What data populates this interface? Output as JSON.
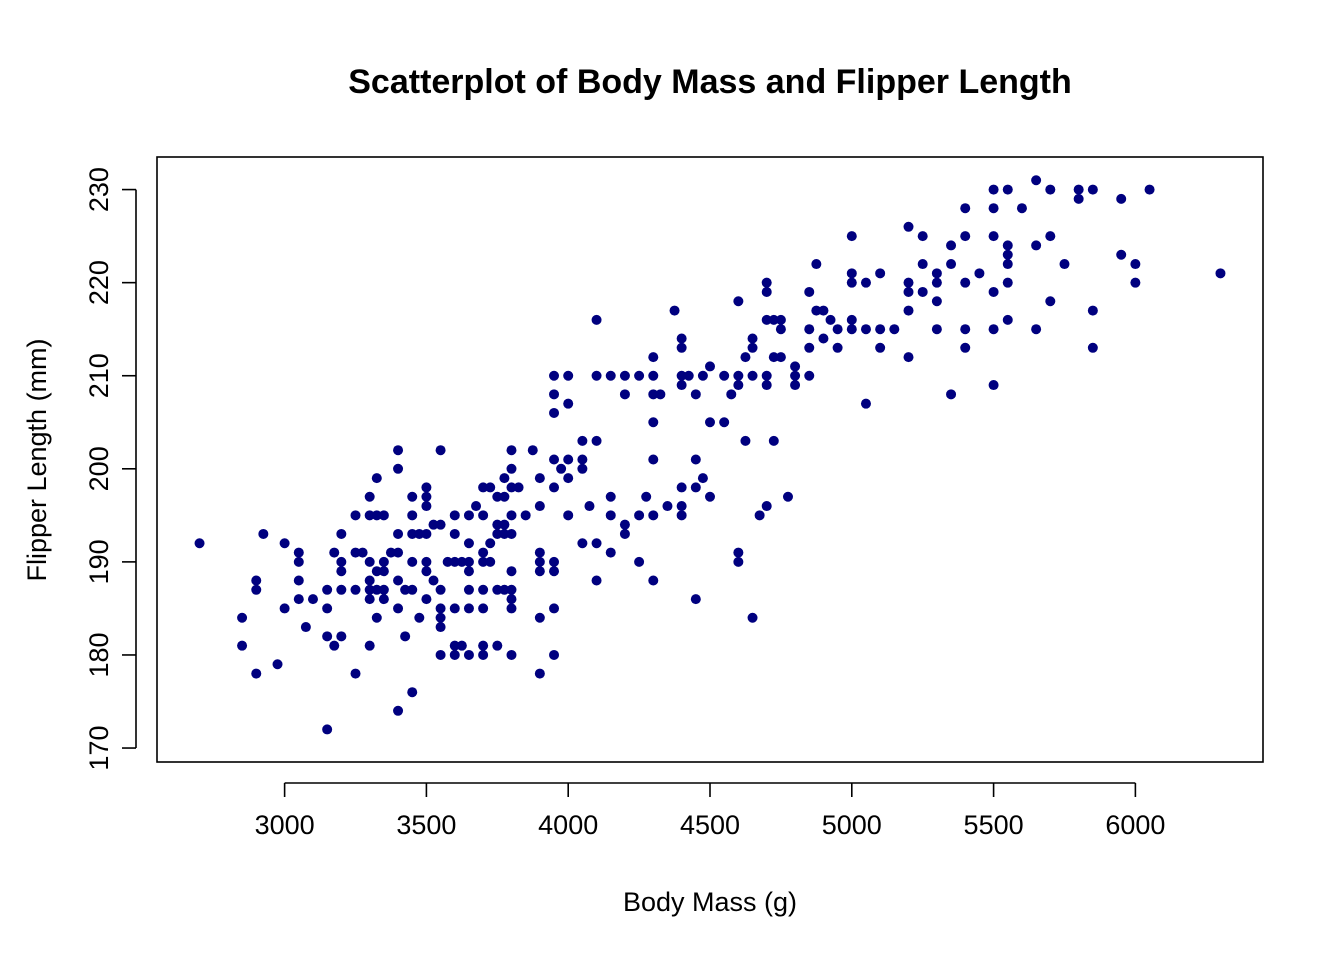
{
  "chart_data": {
    "type": "scatter",
    "title": "Scatterplot of Body Mass and Flipper Length",
    "xlabel": "Body Mass (g)",
    "ylabel": "Flipper Length (mm)",
    "xlim": [
      2550,
      6450
    ],
    "ylim": [
      168.5,
      233.5
    ],
    "x_ticks": [
      3000,
      3500,
      4000,
      4500,
      5000,
      5500,
      6000
    ],
    "y_ticks": [
      170,
      180,
      190,
      200,
      210,
      220,
      230
    ],
    "point_color": "#00007f",
    "grid": false,
    "legend": "none",
    "points": [
      [
        2700,
        192
      ],
      [
        2850,
        184
      ],
      [
        2850,
        181
      ],
      [
        2900,
        188
      ],
      [
        2900,
        187
      ],
      [
        2900,
        178
      ],
      [
        2925,
        193
      ],
      [
        2975,
        179
      ],
      [
        3000,
        192
      ],
      [
        3000,
        185
      ],
      [
        3050,
        191
      ],
      [
        3050,
        190
      ],
      [
        3050,
        188
      ],
      [
        3050,
        186
      ],
      [
        3075,
        183
      ],
      [
        3100,
        186
      ],
      [
        3150,
        187
      ],
      [
        3150,
        185
      ],
      [
        3150,
        182
      ],
      [
        3150,
        172
      ],
      [
        3175,
        191
      ],
      [
        3175,
        181
      ],
      [
        3200,
        193
      ],
      [
        3200,
        190
      ],
      [
        3200,
        189
      ],
      [
        3200,
        187
      ],
      [
        3200,
        182
      ],
      [
        3250,
        195
      ],
      [
        3250,
        191
      ],
      [
        3250,
        187
      ],
      [
        3250,
        178
      ],
      [
        3275,
        191
      ],
      [
        3300,
        197
      ],
      [
        3300,
        195
      ],
      [
        3300,
        190
      ],
      [
        3300,
        188
      ],
      [
        3300,
        187
      ],
      [
        3300,
        186
      ],
      [
        3300,
        181
      ],
      [
        3325,
        199
      ],
      [
        3325,
        195
      ],
      [
        3325,
        189
      ],
      [
        3325,
        187
      ],
      [
        3325,
        184
      ],
      [
        3350,
        195
      ],
      [
        3350,
        190
      ],
      [
        3350,
        189
      ],
      [
        3350,
        187
      ],
      [
        3350,
        186
      ],
      [
        3375,
        191
      ],
      [
        3400,
        202
      ],
      [
        3400,
        200
      ],
      [
        3400,
        193
      ],
      [
        3400,
        191
      ],
      [
        3400,
        188
      ],
      [
        3400,
        185
      ],
      [
        3400,
        174
      ],
      [
        3425,
        187
      ],
      [
        3425,
        182
      ],
      [
        3450,
        197
      ],
      [
        3450,
        195
      ],
      [
        3450,
        193
      ],
      [
        3450,
        190
      ],
      [
        3450,
        187
      ],
      [
        3450,
        176
      ],
      [
        3475,
        193
      ],
      [
        3475,
        184
      ],
      [
        3500,
        198
      ],
      [
        3500,
        197
      ],
      [
        3500,
        196
      ],
      [
        3500,
        193
      ],
      [
        3500,
        190
      ],
      [
        3500,
        189
      ],
      [
        3500,
        186
      ],
      [
        3525,
        188
      ],
      [
        3525,
        194
      ],
      [
        3550,
        202
      ],
      [
        3550,
        194
      ],
      [
        3550,
        187
      ],
      [
        3550,
        185
      ],
      [
        3550,
        184
      ],
      [
        3550,
        183
      ],
      [
        3550,
        180
      ],
      [
        3575,
        190
      ],
      [
        3600,
        195
      ],
      [
        3600,
        193
      ],
      [
        3600,
        190
      ],
      [
        3600,
        185
      ],
      [
        3600,
        181
      ],
      [
        3600,
        180
      ],
      [
        3625,
        190
      ],
      [
        3625,
        181
      ],
      [
        3650,
        195
      ],
      [
        3650,
        192
      ],
      [
        3650,
        190
      ],
      [
        3650,
        189
      ],
      [
        3650,
        187
      ],
      [
        3650,
        185
      ],
      [
        3650,
        180
      ],
      [
        3675,
        196
      ],
      [
        3700,
        198
      ],
      [
        3700,
        195
      ],
      [
        3700,
        191
      ],
      [
        3700,
        190
      ],
      [
        3700,
        187
      ],
      [
        3700,
        185
      ],
      [
        3700,
        181
      ],
      [
        3700,
        180
      ],
      [
        3725,
        198
      ],
      [
        3725,
        192
      ],
      [
        3725,
        190
      ],
      [
        3750,
        197
      ],
      [
        3750,
        194
      ],
      [
        3750,
        193
      ],
      [
        3750,
        187
      ],
      [
        3750,
        181
      ],
      [
        3775,
        199
      ],
      [
        3775,
        197
      ],
      [
        3775,
        194
      ],
      [
        3775,
        193
      ],
      [
        3775,
        187
      ],
      [
        3800,
        202
      ],
      [
        3800,
        200
      ],
      [
        3800,
        198
      ],
      [
        3800,
        195
      ],
      [
        3800,
        193
      ],
      [
        3800,
        189
      ],
      [
        3800,
        187
      ],
      [
        3800,
        186
      ],
      [
        3800,
        185
      ],
      [
        3800,
        180
      ],
      [
        3825,
        198
      ],
      [
        3850,
        195
      ],
      [
        3875,
        202
      ],
      [
        3900,
        199
      ],
      [
        3900,
        196
      ],
      [
        3900,
        191
      ],
      [
        3900,
        190
      ],
      [
        3900,
        189
      ],
      [
        3900,
        184
      ],
      [
        3900,
        178
      ],
      [
        3950,
        210
      ],
      [
        3950,
        208
      ],
      [
        3950,
        206
      ],
      [
        3950,
        201
      ],
      [
        3950,
        198
      ],
      [
        3950,
        190
      ],
      [
        3950,
        189
      ],
      [
        3950,
        185
      ],
      [
        3950,
        180
      ],
      [
        3975,
        200
      ],
      [
        4000,
        210
      ],
      [
        4000,
        207
      ],
      [
        4000,
        201
      ],
      [
        4000,
        199
      ],
      [
        4000,
        195
      ],
      [
        4050,
        203
      ],
      [
        4050,
        201
      ],
      [
        4050,
        200
      ],
      [
        4050,
        192
      ],
      [
        4075,
        196
      ],
      [
        4100,
        216
      ],
      [
        4100,
        210
      ],
      [
        4100,
        203
      ],
      [
        4100,
        192
      ],
      [
        4100,
        188
      ],
      [
        4150,
        210
      ],
      [
        4150,
        197
      ],
      [
        4150,
        195
      ],
      [
        4150,
        191
      ],
      [
        4200,
        210
      ],
      [
        4200,
        208
      ],
      [
        4200,
        194
      ],
      [
        4200,
        193
      ],
      [
        4250,
        210
      ],
      [
        4250,
        195
      ],
      [
        4250,
        190
      ],
      [
        4275,
        197
      ],
      [
        4300,
        212
      ],
      [
        4300,
        210
      ],
      [
        4300,
        208
      ],
      [
        4300,
        205
      ],
      [
        4300,
        201
      ],
      [
        4300,
        195
      ],
      [
        4300,
        188
      ],
      [
        4325,
        208
      ],
      [
        4350,
        196
      ],
      [
        4375,
        217
      ],
      [
        4400,
        214
      ],
      [
        4400,
        213
      ],
      [
        4400,
        210
      ],
      [
        4400,
        209
      ],
      [
        4400,
        198
      ],
      [
        4400,
        196
      ],
      [
        4400,
        195
      ],
      [
        4425,
        210
      ],
      [
        4450,
        208
      ],
      [
        4450,
        201
      ],
      [
        4450,
        198
      ],
      [
        4450,
        186
      ],
      [
        4475,
        210
      ],
      [
        4475,
        199
      ],
      [
        4500,
        211
      ],
      [
        4500,
        205
      ],
      [
        4500,
        197
      ],
      [
        4550,
        210
      ],
      [
        4550,
        205
      ],
      [
        4575,
        208
      ],
      [
        4600,
        218
      ],
      [
        4600,
        210
      ],
      [
        4600,
        209
      ],
      [
        4600,
        191
      ],
      [
        4600,
        190
      ],
      [
        4625,
        212
      ],
      [
        4625,
        203
      ],
      [
        4650,
        214
      ],
      [
        4650,
        213
      ],
      [
        4650,
        210
      ],
      [
        4650,
        184
      ],
      [
        4675,
        195
      ],
      [
        4700,
        220
      ],
      [
        4700,
        219
      ],
      [
        4700,
        216
      ],
      [
        4700,
        210
      ],
      [
        4700,
        209
      ],
      [
        4700,
        196
      ],
      [
        4725,
        216
      ],
      [
        4725,
        212
      ],
      [
        4725,
        203
      ],
      [
        4750,
        216
      ],
      [
        4750,
        215
      ],
      [
        4750,
        212
      ],
      [
        4775,
        197
      ],
      [
        4800,
        211
      ],
      [
        4800,
        210
      ],
      [
        4800,
        209
      ],
      [
        4850,
        219
      ],
      [
        4850,
        215
      ],
      [
        4850,
        213
      ],
      [
        4850,
        210
      ],
      [
        4875,
        222
      ],
      [
        4875,
        217
      ],
      [
        4900,
        217
      ],
      [
        4900,
        214
      ],
      [
        4925,
        216
      ],
      [
        4950,
        215
      ],
      [
        4950,
        213
      ],
      [
        5000,
        225
      ],
      [
        5000,
        221
      ],
      [
        5000,
        220
      ],
      [
        5000,
        216
      ],
      [
        5000,
        215
      ],
      [
        5050,
        220
      ],
      [
        5050,
        215
      ],
      [
        5050,
        207
      ],
      [
        5100,
        221
      ],
      [
        5100,
        215
      ],
      [
        5100,
        213
      ],
      [
        5150,
        215
      ],
      [
        5200,
        226
      ],
      [
        5200,
        220
      ],
      [
        5200,
        219
      ],
      [
        5200,
        217
      ],
      [
        5200,
        212
      ],
      [
        5250,
        225
      ],
      [
        5250,
        222
      ],
      [
        5250,
        219
      ],
      [
        5300,
        221
      ],
      [
        5300,
        220
      ],
      [
        5300,
        218
      ],
      [
        5300,
        215
      ],
      [
        5350,
        224
      ],
      [
        5350,
        222
      ],
      [
        5350,
        208
      ],
      [
        5400,
        228
      ],
      [
        5400,
        225
      ],
      [
        5400,
        220
      ],
      [
        5400,
        215
      ],
      [
        5400,
        213
      ],
      [
        5450,
        221
      ],
      [
        5500,
        230
      ],
      [
        5500,
        228
      ],
      [
        5500,
        225
      ],
      [
        5500,
        219
      ],
      [
        5500,
        215
      ],
      [
        5500,
        209
      ],
      [
        5550,
        230
      ],
      [
        5550,
        224
      ],
      [
        5550,
        223
      ],
      [
        5550,
        222
      ],
      [
        5550,
        220
      ],
      [
        5550,
        216
      ],
      [
        5600,
        228
      ],
      [
        5650,
        231
      ],
      [
        5650,
        224
      ],
      [
        5650,
        215
      ],
      [
        5700,
        230
      ],
      [
        5700,
        225
      ],
      [
        5700,
        218
      ],
      [
        5750,
        222
      ],
      [
        5800,
        230
      ],
      [
        5800,
        229
      ],
      [
        5850,
        230
      ],
      [
        5850,
        217
      ],
      [
        5850,
        213
      ],
      [
        5950,
        229
      ],
      [
        5950,
        223
      ],
      [
        6000,
        222
      ],
      [
        6000,
        220
      ],
      [
        6050,
        230
      ],
      [
        6300,
        221
      ]
    ]
  }
}
